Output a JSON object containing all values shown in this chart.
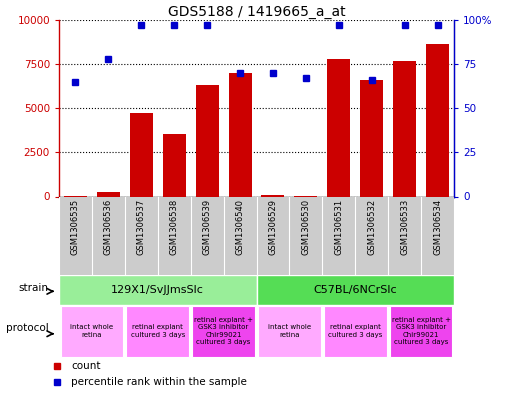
{
  "title": "GDS5188 / 1419665_a_at",
  "samples": [
    "GSM1306535",
    "GSM1306536",
    "GSM1306537",
    "GSM1306538",
    "GSM1306539",
    "GSM1306540",
    "GSM1306529",
    "GSM1306530",
    "GSM1306531",
    "GSM1306532",
    "GSM1306533",
    "GSM1306534"
  ],
  "counts": [
    30,
    250,
    4700,
    3550,
    6300,
    7000,
    80,
    30,
    7750,
    6600,
    7650,
    8650
  ],
  "percentiles": [
    65,
    78,
    97,
    97,
    97,
    70,
    70,
    67,
    97,
    66,
    97,
    97
  ],
  "bar_color": "#cc0000",
  "dot_color": "#0000cc",
  "ylim_left": [
    0,
    10000
  ],
  "ylim_right": [
    0,
    100
  ],
  "yticks_left": [
    0,
    2500,
    5000,
    7500,
    10000
  ],
  "ytick_labels_left": [
    "0",
    "2500",
    "5000",
    "7500",
    "10000"
  ],
  "yticks_right": [
    0,
    25,
    50,
    75,
    100
  ],
  "ytick_labels_right": [
    "0",
    "25",
    "50",
    "75",
    "100%"
  ],
  "strain_groups": [
    {
      "label": "129X1/SvJJmsSlc",
      "start": 0,
      "end": 6,
      "color": "#99ee99"
    },
    {
      "label": "C57BL/6NCrSlc",
      "start": 6,
      "end": 12,
      "color": "#55dd55"
    }
  ],
  "protocol_groups": [
    {
      "label": "intact whole\nretina",
      "start": 0,
      "end": 2,
      "color": "#ffaaff"
    },
    {
      "label": "retinal explant\ncultured 3 days",
      "start": 2,
      "end": 4,
      "color": "#ff88ff"
    },
    {
      "label": "retinal explant +\nGSK3 inhibitor\nChir99021\ncultured 3 days",
      "start": 4,
      "end": 6,
      "color": "#ee44ee"
    },
    {
      "label": "intact whole\nretina",
      "start": 6,
      "end": 8,
      "color": "#ffaaff"
    },
    {
      "label": "retinal explant\ncultured 3 days",
      "start": 8,
      "end": 10,
      "color": "#ff88ff"
    },
    {
      "label": "retinal explant +\nGSK3 inhibitor\nChir99021\ncultured 3 days",
      "start": 10,
      "end": 12,
      "color": "#ee44ee"
    }
  ],
  "legend_count_label": "count",
  "legend_pct_label": "percentile rank within the sample",
  "bar_color_hex": "#cc0000",
  "dot_color_hex": "#0000cc",
  "sample_bg_color": "#cccccc",
  "sample_divider_color": "#ffffff"
}
